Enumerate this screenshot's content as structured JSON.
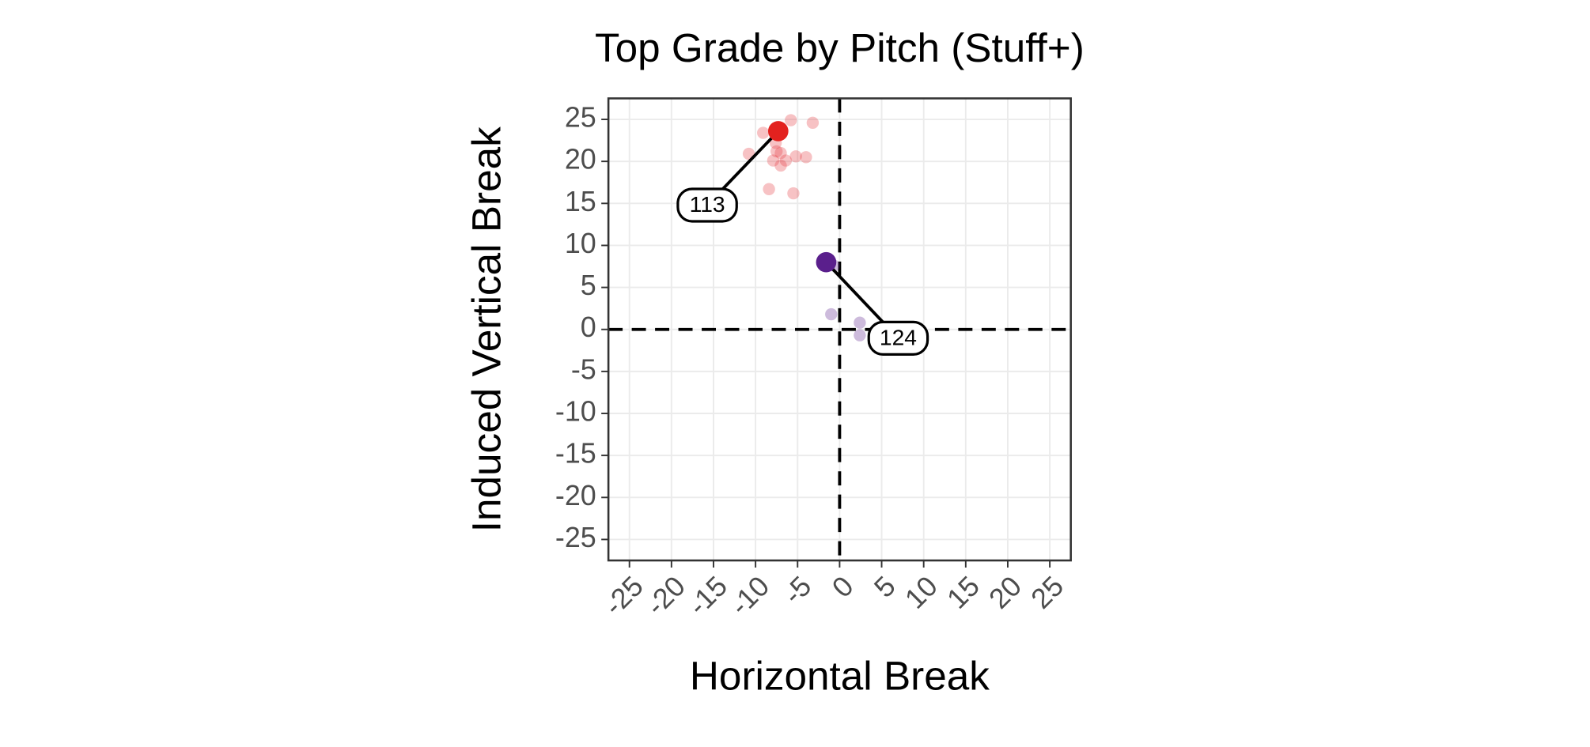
{
  "chart_data": {
    "type": "scatter",
    "title": "Top Grade by Pitch (Stuff+)",
    "x_label": "Horizontal Break",
    "y_label": "Induced Vertical Break",
    "xlim": [
      -27.5,
      27.5
    ],
    "ylim": [
      -27.5,
      27.5
    ],
    "xticks": [
      -25,
      -20,
      -15,
      -10,
      -5,
      0,
      5,
      10,
      15,
      20,
      25
    ],
    "yticks": [
      -25,
      -20,
      -15,
      -10,
      -5,
      0,
      5,
      10,
      15,
      20,
      25
    ],
    "grid": true,
    "reference_lines": {
      "x": 0,
      "y": 0
    },
    "series": [
      {
        "color": "#e3353b",
        "x": [
          -9.1,
          -5.8,
          -3.2,
          -10.8,
          -7.6,
          -7.0,
          -6.4,
          -7.9,
          -7.0,
          -5.2,
          -4.0,
          -8.4,
          -5.5,
          -7.5
        ],
        "values": [
          23.4,
          24.9,
          24.6,
          20.9,
          22.2,
          21.0,
          20.1,
          20.1,
          19.5,
          20.6,
          20.5,
          16.7,
          16.2,
          21.2
        ]
      },
      {
        "color": "#5a1f8c",
        "x": [
          -1.0,
          2.4,
          2.4,
          -0.7
        ],
        "values": [
          1.8,
          0.8,
          -0.7,
          7.6
        ]
      }
    ],
    "highlights": [
      {
        "x": -7.3,
        "y": 23.6,
        "label": "113",
        "color": "#e3221f"
      },
      {
        "x": -1.6,
        "y": 8.0,
        "label": "124",
        "color": "#5a1f8c"
      }
    ]
  }
}
